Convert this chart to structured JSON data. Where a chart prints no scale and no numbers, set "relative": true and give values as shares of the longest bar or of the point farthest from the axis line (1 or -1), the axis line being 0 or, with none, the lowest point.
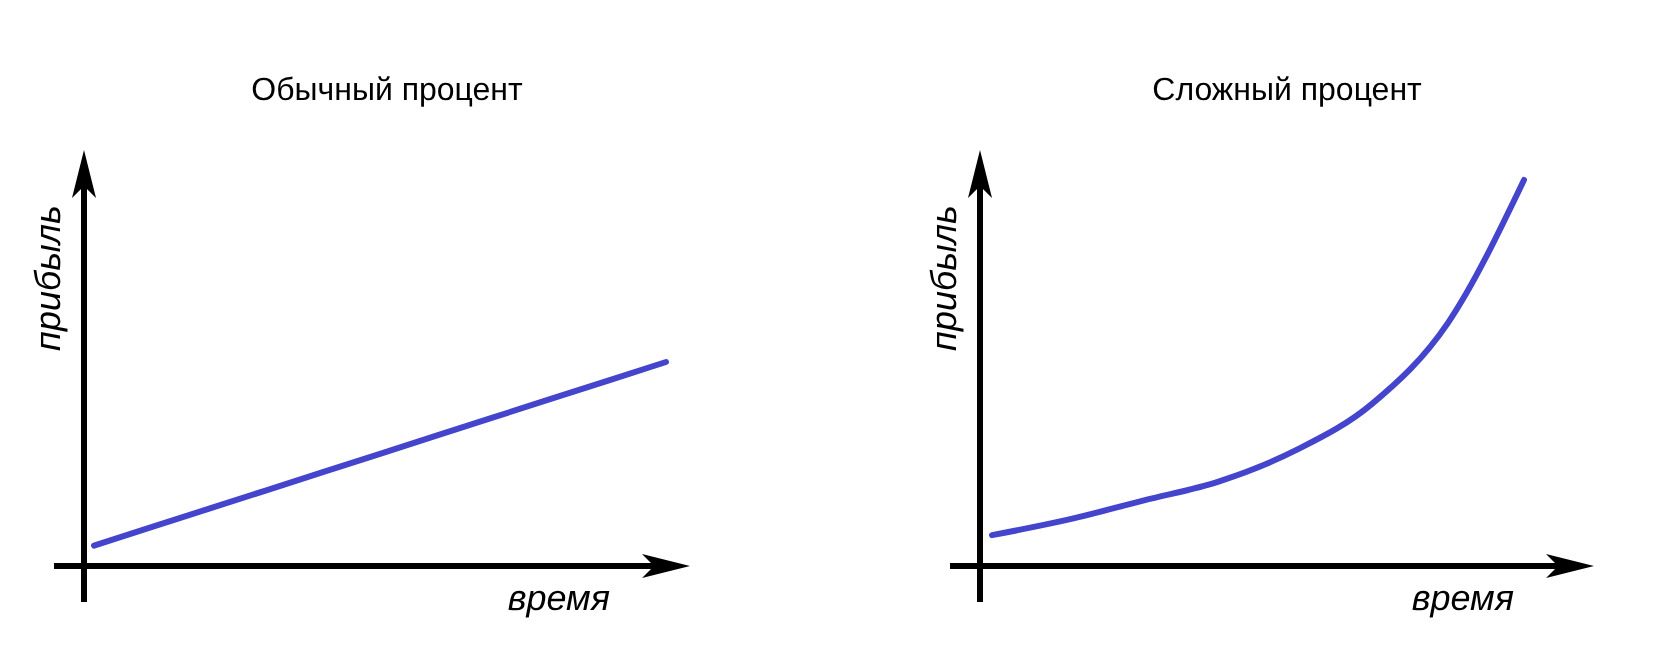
{
  "chart_data": [
    {
      "type": "line",
      "title": "Обычный процент",
      "xlabel": "время",
      "ylabel": "прибыль",
      "relative": true,
      "categories": [
        null,
        null,
        null,
        null,
        null,
        null
      ],
      "marker": "none",
      "line_style": "solid",
      "series": [
        {
          "color": "#4444cc",
          "values": [
            0.1,
            0.28,
            0.46,
            0.64,
            0.82,
            1.0
          ]
        }
      ]
    },
    {
      "type": "line",
      "title": "Сложный процент",
      "xlabel": "время",
      "ylabel": "прибыль",
      "relative": true,
      "categories": [
        null,
        null,
        null,
        null,
        null,
        null,
        null,
        null
      ],
      "marker": "none",
      "line_style": "solid",
      "series": [
        {
          "color": "#4444cc",
          "values": [
            0.08,
            0.12,
            0.17,
            0.22,
            0.3,
            0.42,
            0.63,
            1.0
          ]
        }
      ]
    }
  ]
}
